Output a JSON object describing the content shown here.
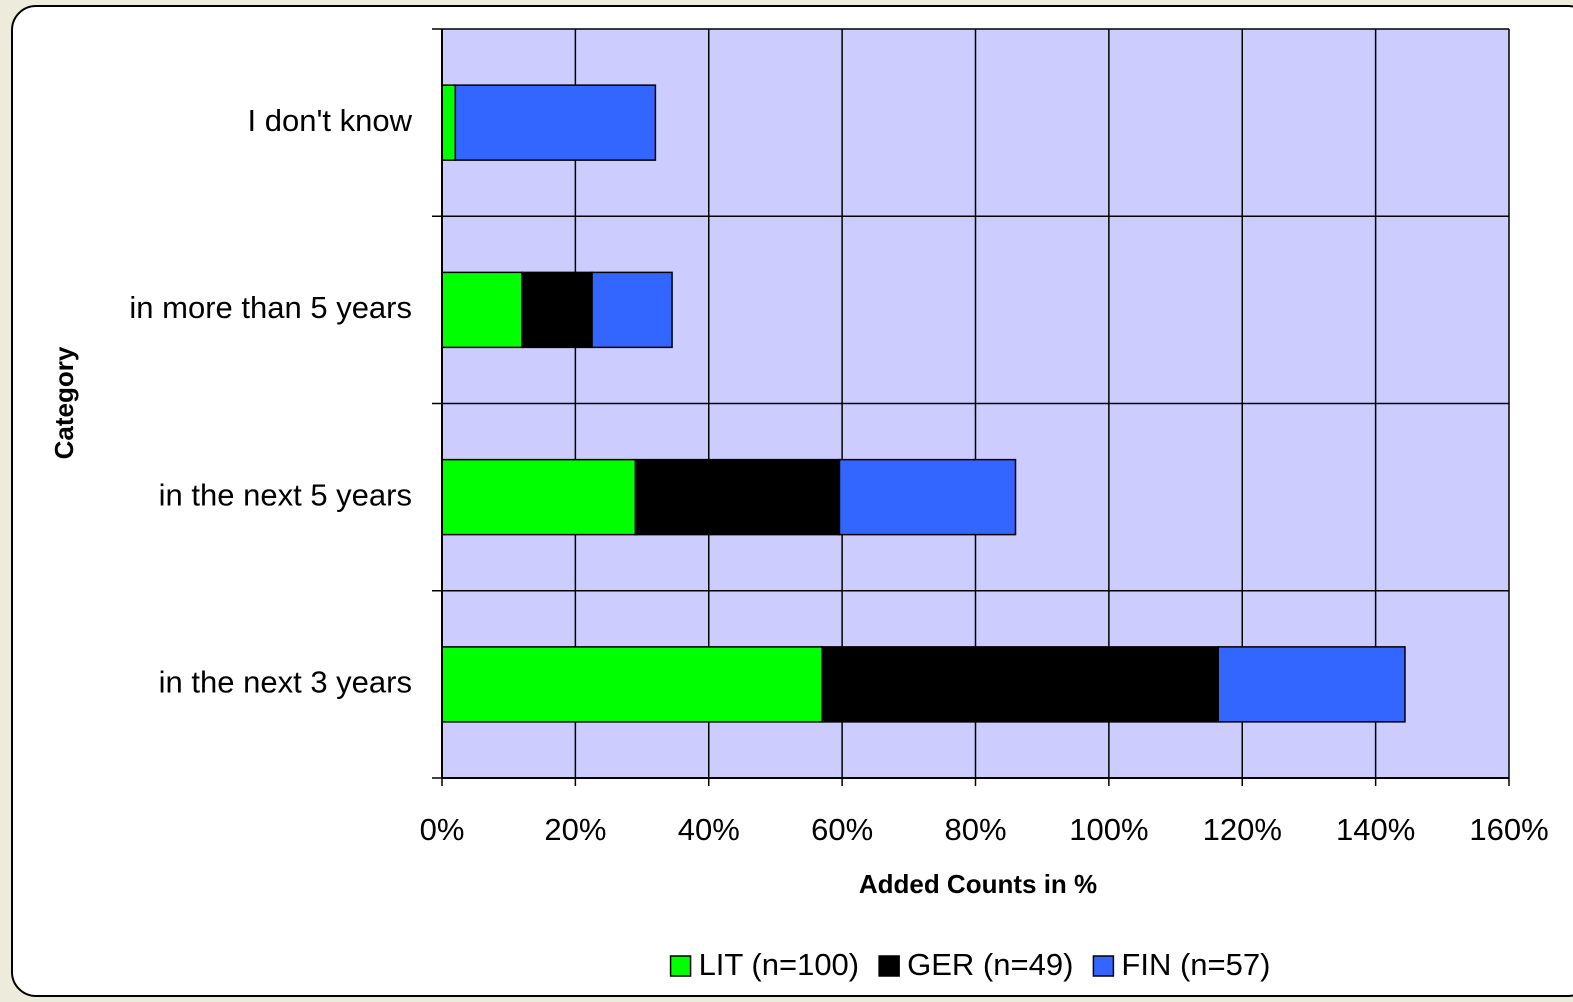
{
  "chart_data": {
    "type": "stacked-barh",
    "categories": [
      "in the next 3 years",
      "in the next 5 years",
      "in more than 5 years",
      "I don't know"
    ],
    "series": [
      {
        "name": "LIT (n=100)",
        "color": "#00ff00",
        "values": [
          57,
          29,
          12,
          2
        ]
      },
      {
        "name": "GER (n=49)",
        "color": "#000000",
        "values": [
          59.4,
          30.6,
          10.5,
          0
        ]
      },
      {
        "name": "FIN (n=57)",
        "color": "#3366ff",
        "values": [
          28,
          26.4,
          12,
          30
        ]
      }
    ],
    "xlabel": "Added Counts in %",
    "ylabel": "Category",
    "xlim": [
      0,
      160
    ],
    "xticks": [
      {
        "value": 0,
        "label": "0%"
      },
      {
        "value": 20,
        "label": "20%"
      },
      {
        "value": 40,
        "label": "40%"
      },
      {
        "value": 60,
        "label": "60%"
      },
      {
        "value": 80,
        "label": "80%"
      },
      {
        "value": 100,
        "label": "100%"
      },
      {
        "value": 120,
        "label": "120%"
      },
      {
        "value": 140,
        "label": "140%"
      },
      {
        "value": 160,
        "label": "160%"
      }
    ],
    "grid": true,
    "legend": "bottom",
    "plot_background": "#ccccff"
  }
}
